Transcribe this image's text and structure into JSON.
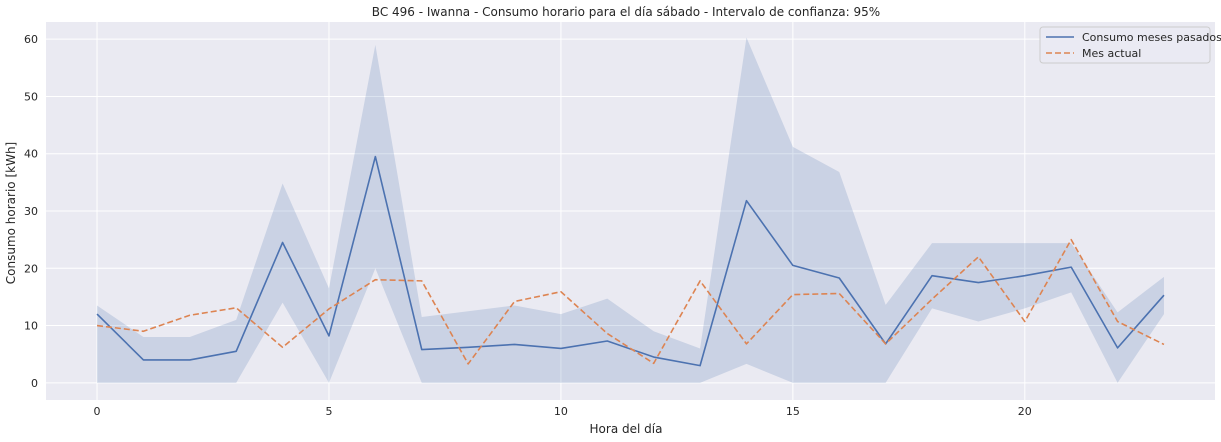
{
  "chart_data": {
    "type": "line",
    "title": "BC 496 - Iwanna - Consumo horario para el día sábado - Intervalo de confianza: 95%",
    "xlabel": "Hora del día",
    "ylabel": "Consumo horario [kWh]",
    "xlim": [
      -1.1,
      24.1
    ],
    "ylim": [
      -3,
      63
    ],
    "xticks": [
      0,
      5,
      10,
      15,
      20
    ],
    "yticks": [
      0,
      10,
      20,
      30,
      40,
      50,
      60
    ],
    "grid": true,
    "legend_position": "top-right",
    "x": [
      0,
      1,
      2,
      3,
      4,
      5,
      6,
      7,
      8,
      9,
      10,
      11,
      12,
      13,
      14,
      15,
      16,
      17,
      18,
      19,
      20,
      21,
      22,
      23
    ],
    "series": [
      {
        "name": "Consumo meses pasados",
        "style": "solid",
        "color": "#4c72b0",
        "values": [
          12.0,
          4.0,
          4.0,
          5.5,
          24.5,
          8.2,
          39.5,
          5.8,
          6.2,
          6.7,
          6.0,
          7.3,
          4.5,
          3.0,
          31.8,
          20.5,
          18.3,
          6.8,
          18.7,
          17.5,
          18.7,
          20.2,
          6.1,
          15.3
        ],
        "ci_lower": [
          0,
          0,
          0,
          0,
          14.0,
          0,
          20.0,
          0,
          0,
          0,
          0,
          0,
          0,
          0,
          3.3,
          0,
          0,
          0,
          13.0,
          10.7,
          13.0,
          15.8,
          0,
          12.0
        ],
        "ci_upper": [
          13.5,
          8.0,
          8.0,
          11.0,
          34.8,
          16.5,
          59.0,
          11.5,
          12.5,
          13.5,
          12.0,
          14.7,
          9.0,
          6.0,
          60.3,
          41.2,
          36.8,
          13.6,
          24.4,
          24.4,
          24.4,
          24.4,
          12.3,
          18.5
        ]
      },
      {
        "name": "Mes actual",
        "style": "dashed",
        "color": "#dd8452",
        "values": [
          10.0,
          9.0,
          11.8,
          13.1,
          6.2,
          12.9,
          18.0,
          17.8,
          3.3,
          14.2,
          15.9,
          8.6,
          3.4,
          17.8,
          6.8,
          15.4,
          15.6,
          6.8,
          14.6,
          22.0,
          10.7,
          25.0,
          10.7,
          6.7
        ]
      }
    ]
  }
}
